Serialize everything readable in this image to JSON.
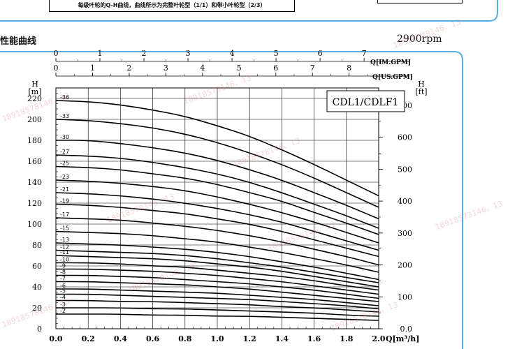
{
  "note_text": "每级叶轮的Q-H曲线，曲线所示为完整叶轮型（1/1）和带小叶轮型（2/3）",
  "section_title": "性能曲线",
  "speed": "2900rpm",
  "model_label": "CDL1/CDLF1",
  "colors": {
    "curve": "#000000",
    "grid": "#000000",
    "frame": "#5aaee0",
    "watermark": "#e07878"
  },
  "watermark_text": "18918578146、13",
  "chart_data": {
    "type": "line",
    "xlabel": "Q[m³/h]",
    "xlim": [
      0,
      2.0
    ],
    "x_ticks": [
      "0.0",
      "0.2",
      "0.4",
      "0.6",
      "0.8",
      "1.0",
      "1.2",
      "1.4",
      "1.6",
      "1.8",
      "2.0"
    ],
    "ylabel_left": "H",
    "ylabel_left_unit": "[m]",
    "ylim": [
      0,
      230
    ],
    "y_ticks_left": [
      "0",
      "20",
      "40",
      "60",
      "80",
      "100",
      "120",
      "140",
      "160",
      "180",
      "200",
      "220"
    ],
    "ylabel_right": "H",
    "ylabel_right_unit": "[ft]",
    "y_ticks_right": [
      "0.0",
      "100",
      "200",
      "300",
      "400",
      "500",
      "600",
      "700"
    ],
    "top_axis_us": {
      "label": "Q[US.GPM]",
      "ticks": [
        "0",
        "1",
        "2",
        "3",
        "4",
        "5",
        "6",
        "7",
        "8"
      ]
    },
    "top_axis_im": {
      "label": "Q[IM.GPM]",
      "ticks": [
        "0",
        "1",
        "2",
        "3",
        "4",
        "5",
        "6",
        "7"
      ]
    },
    "x": [
      0.0,
      0.2,
      0.4,
      0.6,
      0.8,
      1.0,
      1.2,
      1.4,
      1.6,
      1.8,
      2.0
    ],
    "series": [
      {
        "name": "-36",
        "values": [
          218,
          217,
          214,
          209,
          203,
          194,
          184,
          171,
          157,
          142,
          127
        ]
      },
      {
        "name": "-33",
        "values": [
          200,
          199,
          196,
          192,
          186,
          178,
          168,
          157,
          144,
          130,
          116
        ]
      },
      {
        "name": "-30",
        "values": [
          180,
          180,
          177,
          173,
          168,
          161,
          152,
          142,
          130,
          118,
          105
        ]
      },
      {
        "name": "-27",
        "values": [
          166,
          165,
          163,
          159,
          154,
          148,
          140,
          130,
          119,
          108,
          96
        ]
      },
      {
        "name": "-25",
        "values": [
          155,
          154,
          152,
          148,
          144,
          138,
          130,
          122,
          111,
          101,
          90
        ]
      },
      {
        "name": "-23",
        "values": [
          142,
          141,
          139,
          136,
          132,
          126,
          119,
          111,
          102,
          92,
          82
        ]
      },
      {
        "name": "-21",
        "values": [
          130,
          129,
          127,
          124,
          120,
          115,
          109,
          102,
          93,
          84,
          75
        ]
      },
      {
        "name": "-19",
        "values": [
          119,
          118,
          116,
          113,
          110,
          105,
          100,
          93,
          85,
          77,
          69
        ]
      },
      {
        "name": "-17",
        "values": [
          106,
          105,
          104,
          101,
          98,
          94,
          89,
          83,
          76,
          69,
          61
        ]
      },
      {
        "name": "-15",
        "values": [
          93,
          92,
          91,
          89,
          86,
          83,
          78,
          73,
          67,
          61,
          54
        ]
      },
      {
        "name": "-13",
        "values": [
          82,
          81,
          80,
          78,
          76,
          73,
          69,
          64,
          59,
          53,
          47
        ]
      },
      {
        "name": "-12",
        "values": [
          75,
          74,
          73,
          72,
          70,
          67,
          63,
          59,
          54,
          49,
          44
        ]
      },
      {
        "name": "-11",
        "values": [
          70,
          69,
          68,
          67,
          65,
          62,
          59,
          55,
          50,
          45,
          40
        ]
      },
      {
        "name": "-10",
        "values": [
          63,
          63,
          62,
          60,
          59,
          56,
          53,
          50,
          46,
          41,
          37
        ]
      },
      {
        "name": "-9",
        "values": [
          57,
          57,
          56,
          55,
          53,
          51,
          48,
          45,
          41,
          37,
          33
        ]
      },
      {
        "name": "-8",
        "values": [
          51,
          51,
          50,
          49,
          47,
          45,
          43,
          40,
          37,
          33,
          29
        ]
      },
      {
        "name": "-7",
        "values": [
          45,
          45,
          44,
          43,
          42,
          40,
          38,
          35,
          32,
          29,
          26
        ]
      },
      {
        "name": "-6",
        "values": [
          38,
          38,
          37,
          36,
          35,
          34,
          32,
          30,
          28,
          25,
          22
        ]
      },
      {
        "name": "-5",
        "values": [
          33,
          33,
          32,
          31,
          30,
          29,
          28,
          26,
          24,
          22,
          19
        ]
      },
      {
        "name": "-4",
        "values": [
          27,
          27,
          26,
          26,
          25,
          24,
          23,
          21,
          20,
          18,
          16
        ]
      },
      {
        "name": "-3",
        "values": [
          20,
          20,
          20,
          19,
          19,
          18,
          17,
          16,
          15,
          13,
          12
        ]
      },
      {
        "name": "-2",
        "values": [
          14,
          14,
          14,
          13,
          13,
          12,
          12,
          11,
          10,
          9,
          8
        ]
      }
    ],
    "grid": true
  }
}
